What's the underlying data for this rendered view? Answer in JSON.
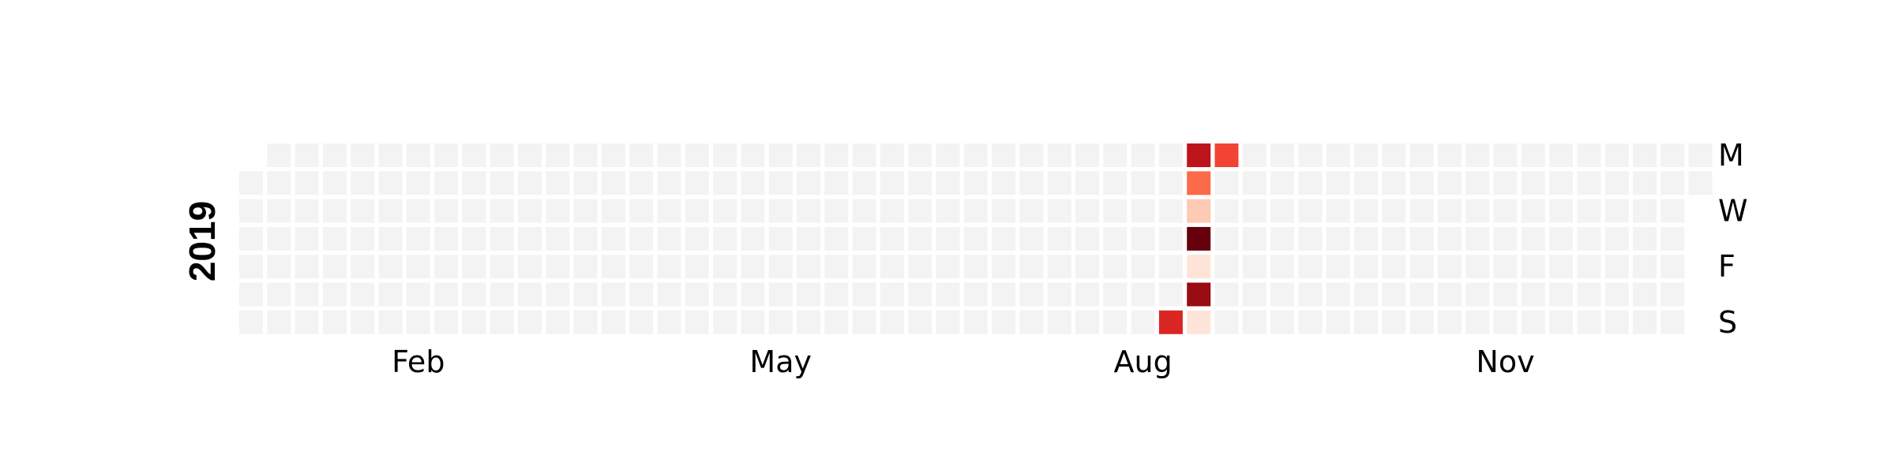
{
  "chart_data": {
    "type": "heatmap",
    "year": "2019",
    "day_labels": [
      "M",
      "W",
      "F",
      "S"
    ],
    "month_labels": [
      "Feb",
      "May",
      "Aug",
      "Nov"
    ],
    "colors": {
      "empty": "#f3f3f3",
      "scale": [
        "#fff5f0",
        "#fee0d2",
        "#fcbba1",
        "#fc9272",
        "#fb6a4a",
        "#ef3b2c",
        "#cb181d",
        "#a50f15",
        "#67000d"
      ]
    },
    "values": [
      {
        "date": "2019-08-25",
        "value": 7
      },
      {
        "date": "2019-08-26",
        "value": 8
      },
      {
        "date": "2019-08-27",
        "value": 5
      },
      {
        "date": "2019-08-28",
        "value": 2
      },
      {
        "date": "2019-08-29",
        "value": 10
      },
      {
        "date": "2019-08-30",
        "value": 1
      },
      {
        "date": "2019-08-31",
        "value": 9
      },
      {
        "date": "2019-09-01",
        "value": 1
      },
      {
        "date": "2019-09-02",
        "value": 6
      }
    ],
    "vmin": 0,
    "vmax": 10
  }
}
